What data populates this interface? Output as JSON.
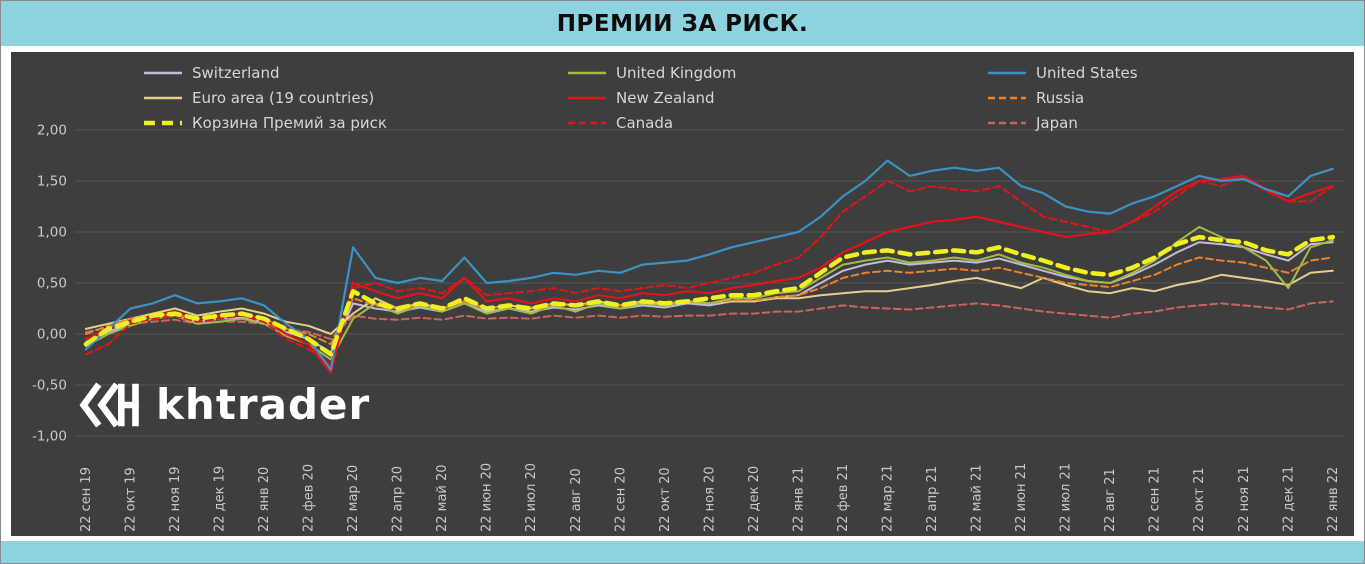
{
  "title": "ПРЕМИИ ЗА РИСК.",
  "watermark": "khtrader",
  "colors": {
    "band_bg": "#8ed2e0",
    "panel_bg": "#3e3e3e",
    "grid": "#575757",
    "axis_text": "#c9c9c9",
    "legend_text": "#d6d6d6",
    "watermark_text": "#ffffff"
  },
  "chart_data": {
    "type": "line",
    "title": "ПРЕМИИ ЗА РИСК.",
    "grid": true,
    "legend_position": "top",
    "ylim": [
      -1.0,
      2.0
    ],
    "ytick_step": 0.5,
    "ytick_labels": [
      "2,00",
      "1,50",
      "1,00",
      "0,50",
      "0,00",
      "-0,50",
      "-1,00"
    ],
    "x_tick_labels": [
      "22 сен 19",
      "22 окт 19",
      "22 ноя 19",
      "22 дек 19",
      "22 янв 20",
      "22 фев 20",
      "22 мар 20",
      "22 апр 20",
      "22 май 20",
      "22 июн 20",
      "22 июл 20",
      "22 авг 20",
      "22 сен 20",
      "22 окт 20",
      "22 ноя 20",
      "22 дек 20",
      "22 янв 21",
      "22 фев 21",
      "22 мар 21",
      "22 апр 21",
      "22 май 21",
      "22 июн 21",
      "22 июл 21",
      "22 авг 21",
      "22 сен 21",
      "22 окт 21",
      "22 ноя 21",
      "22 дек 21",
      "22 янв 22"
    ],
    "points_per_tick": 2,
    "series": [
      {
        "name": "Switzerland",
        "color": "#c4badc",
        "dash": "none",
        "width": 2,
        "values": [
          -0.08,
          0.02,
          0.1,
          0.15,
          0.18,
          0.12,
          0.15,
          0.16,
          0.12,
          0.02,
          -0.05,
          -0.18,
          0.3,
          0.25,
          0.22,
          0.26,
          0.22,
          0.3,
          0.22,
          0.25,
          0.22,
          0.26,
          0.24,
          0.28,
          0.25,
          0.28,
          0.26,
          0.3,
          0.28,
          0.32,
          0.32,
          0.36,
          0.38,
          0.5,
          0.62,
          0.68,
          0.72,
          0.68,
          0.7,
          0.72,
          0.7,
          0.74,
          0.68,
          0.62,
          0.56,
          0.52,
          0.5,
          0.58,
          0.68,
          0.8,
          0.9,
          0.88,
          0.85,
          0.78,
          0.72,
          0.88,
          0.9
        ]
      },
      {
        "name": "United Kingdom",
        "color": "#a3bb44",
        "dash": "none",
        "width": 2,
        "values": [
          -0.12,
          0.0,
          0.08,
          0.15,
          0.18,
          0.1,
          0.12,
          0.15,
          0.1,
          -0.02,
          -0.1,
          -0.25,
          0.15,
          0.3,
          0.2,
          0.28,
          0.22,
          0.3,
          0.2,
          0.25,
          0.2,
          0.28,
          0.22,
          0.3,
          0.25,
          0.3,
          0.28,
          0.32,
          0.3,
          0.35,
          0.35,
          0.4,
          0.42,
          0.55,
          0.68,
          0.72,
          0.75,
          0.7,
          0.72,
          0.75,
          0.72,
          0.78,
          0.7,
          0.65,
          0.58,
          0.52,
          0.5,
          0.6,
          0.72,
          0.9,
          1.05,
          0.95,
          0.85,
          0.72,
          0.45,
          0.85,
          0.92
        ]
      },
      {
        "name": "United States",
        "color": "#3b92c4",
        "dash": "none",
        "width": 2.2,
        "values": [
          -0.15,
          0.05,
          0.25,
          0.3,
          0.38,
          0.3,
          0.32,
          0.35,
          0.28,
          0.1,
          -0.05,
          -0.35,
          0.85,
          0.55,
          0.5,
          0.55,
          0.52,
          0.75,
          0.5,
          0.52,
          0.55,
          0.6,
          0.58,
          0.62,
          0.6,
          0.68,
          0.7,
          0.72,
          0.78,
          0.85,
          0.9,
          0.95,
          1.0,
          1.15,
          1.35,
          1.5,
          1.7,
          1.55,
          1.6,
          1.63,
          1.6,
          1.63,
          1.45,
          1.38,
          1.25,
          1.2,
          1.18,
          1.28,
          1.35,
          1.45,
          1.55,
          1.5,
          1.52,
          1.42,
          1.35,
          1.55,
          1.62
        ]
      },
      {
        "name": "Euro area (19 countries)",
        "color": "#e6cf8b",
        "dash": "none",
        "width": 2,
        "values": [
          0.05,
          0.1,
          0.15,
          0.2,
          0.25,
          0.18,
          0.22,
          0.25,
          0.2,
          0.12,
          0.08,
          0.0,
          0.2,
          0.35,
          0.25,
          0.3,
          0.25,
          0.32,
          0.25,
          0.28,
          0.25,
          0.3,
          0.28,
          0.32,
          0.28,
          0.32,
          0.3,
          0.32,
          0.3,
          0.32,
          0.32,
          0.35,
          0.35,
          0.38,
          0.4,
          0.42,
          0.42,
          0.45,
          0.48,
          0.52,
          0.55,
          0.5,
          0.45,
          0.55,
          0.48,
          0.42,
          0.4,
          0.45,
          0.42,
          0.48,
          0.52,
          0.58,
          0.55,
          0.52,
          0.48,
          0.6,
          0.62
        ]
      },
      {
        "name": "New Zealand",
        "color": "#e51317",
        "dash": "none",
        "width": 2.2,
        "values": [
          -0.05,
          0.05,
          0.12,
          0.18,
          0.22,
          0.15,
          0.18,
          0.2,
          0.15,
          0.0,
          -0.1,
          -0.38,
          0.5,
          0.42,
          0.35,
          0.4,
          0.35,
          0.55,
          0.32,
          0.35,
          0.3,
          0.35,
          0.32,
          0.38,
          0.35,
          0.4,
          0.38,
          0.42,
          0.4,
          0.45,
          0.48,
          0.52,
          0.55,
          0.65,
          0.8,
          0.9,
          1.0,
          1.05,
          1.1,
          1.12,
          1.15,
          1.1,
          1.05,
          1.0,
          0.95,
          0.98,
          1.0,
          1.1,
          1.25,
          1.4,
          1.5,
          1.52,
          1.55,
          1.42,
          1.3,
          1.38,
          1.45
        ]
      },
      {
        "name": "Russia",
        "color": "#ec8130",
        "dash": "7 4",
        "width": 2,
        "values": [
          0.0,
          0.08,
          0.15,
          0.18,
          0.2,
          0.15,
          0.18,
          0.2,
          0.15,
          0.05,
          0.0,
          -0.1,
          0.35,
          0.28,
          0.25,
          0.28,
          0.25,
          0.32,
          0.25,
          0.28,
          0.26,
          0.3,
          0.28,
          0.3,
          0.28,
          0.3,
          0.3,
          0.32,
          0.3,
          0.33,
          0.33,
          0.36,
          0.38,
          0.45,
          0.55,
          0.6,
          0.62,
          0.6,
          0.62,
          0.64,
          0.62,
          0.65,
          0.6,
          0.55,
          0.5,
          0.48,
          0.46,
          0.52,
          0.58,
          0.68,
          0.75,
          0.72,
          0.7,
          0.65,
          0.6,
          0.72,
          0.75
        ]
      },
      {
        "name": "Корзина Премий за риск",
        "color": "#f0ef1f",
        "dash": "11 7",
        "width": 4.5,
        "values": [
          -0.1,
          0.05,
          0.12,
          0.18,
          0.2,
          0.15,
          0.18,
          0.2,
          0.15,
          0.05,
          -0.05,
          -0.2,
          0.42,
          0.3,
          0.25,
          0.3,
          0.25,
          0.35,
          0.25,
          0.28,
          0.25,
          0.3,
          0.28,
          0.32,
          0.28,
          0.32,
          0.3,
          0.32,
          0.35,
          0.38,
          0.38,
          0.42,
          0.45,
          0.6,
          0.75,
          0.8,
          0.82,
          0.78,
          0.8,
          0.82,
          0.8,
          0.85,
          0.78,
          0.72,
          0.65,
          0.6,
          0.58,
          0.65,
          0.75,
          0.88,
          0.95,
          0.92,
          0.9,
          0.82,
          0.78,
          0.92,
          0.95
        ]
      },
      {
        "name": "Canada",
        "color": "#e51317",
        "dash": "7 4",
        "width": 2,
        "values": [
          -0.2,
          -0.1,
          0.1,
          0.15,
          0.18,
          0.12,
          0.15,
          0.18,
          0.12,
          -0.05,
          -0.15,
          -0.3,
          0.45,
          0.5,
          0.42,
          0.45,
          0.4,
          0.55,
          0.38,
          0.4,
          0.42,
          0.45,
          0.4,
          0.45,
          0.42,
          0.45,
          0.48,
          0.45,
          0.5,
          0.55,
          0.6,
          0.68,
          0.75,
          0.95,
          1.2,
          1.35,
          1.5,
          1.4,
          1.45,
          1.42,
          1.4,
          1.45,
          1.3,
          1.15,
          1.1,
          1.05,
          1.0,
          1.1,
          1.2,
          1.35,
          1.5,
          1.45,
          1.55,
          1.4,
          1.3,
          1.3,
          1.45
        ]
      },
      {
        "name": "Japan",
        "color": "#cd6360",
        "dash": "7 4",
        "width": 2,
        "values": [
          0.02,
          0.06,
          0.1,
          0.12,
          0.14,
          0.1,
          0.12,
          0.12,
          0.1,
          0.05,
          0.02,
          -0.05,
          0.18,
          0.15,
          0.14,
          0.16,
          0.14,
          0.18,
          0.15,
          0.16,
          0.15,
          0.18,
          0.16,
          0.18,
          0.16,
          0.18,
          0.17,
          0.18,
          0.18,
          0.2,
          0.2,
          0.22,
          0.22,
          0.25,
          0.28,
          0.26,
          0.25,
          0.24,
          0.26,
          0.28,
          0.3,
          0.28,
          0.25,
          0.22,
          0.2,
          0.18,
          0.16,
          0.2,
          0.22,
          0.26,
          0.28,
          0.3,
          0.28,
          0.26,
          0.24,
          0.3,
          0.32
        ]
      }
    ]
  }
}
